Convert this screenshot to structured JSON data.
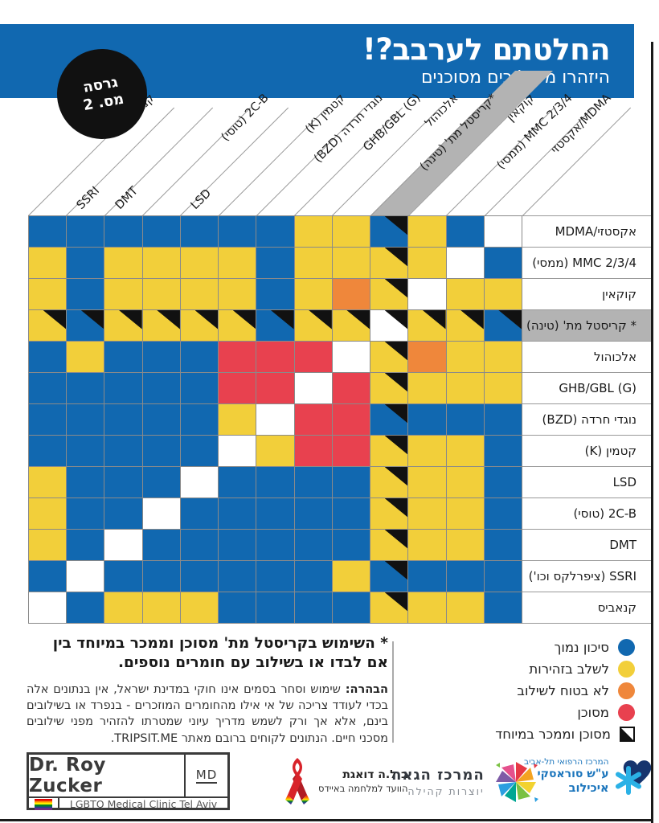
{
  "header": {
    "title": "החלטתם לערבב?!",
    "subtitle": "היזהרו משילובים מסוכנים",
    "badge_line1": "גרסה",
    "badge_line2": "מס. 2",
    "band_color": "#1168B0"
  },
  "chart_data": {
    "type": "heatmap",
    "title": "החלטתם לערבב?! היזהרו משילובים מסוכנים",
    "columns": [
      {
        "text": "קנאביס",
        "dir": "rtl"
      },
      {
        "text": "SSRI",
        "dir": "ltr"
      },
      {
        "text": "DMT",
        "dir": "ltr"
      },
      {
        "text": "2C-B (טוסי)",
        "dir": "rtl"
      },
      {
        "text": "LSD",
        "dir": "ltr"
      },
      {
        "text": "קטמין (K)",
        "dir": "rtl"
      },
      {
        "text": "נוגדי חרדה (BZD)",
        "dir": "rtl"
      },
      {
        "text": "GHB/GBL (G)",
        "dir": "rtl"
      },
      {
        "text": "אלכוהול",
        "dir": "rtl"
      },
      {
        "text": "*קריסטל מת' (טינה)",
        "dir": "rtl",
        "highlight": true
      },
      {
        "text": "קוקאין",
        "dir": "rtl"
      },
      {
        "text": "MMC 2/3/4 (ממסי)",
        "dir": "rtl"
      },
      {
        "text": "MDMA/אקסטזי",
        "dir": "rtl"
      }
    ],
    "rows": [
      {
        "text": "MDMA/אקסטזי",
        "dir": "ltr"
      },
      {
        "text": "MMC 2/3/4 (ממסי)",
        "dir": "rtl"
      },
      {
        "text": "קוקאין",
        "dir": "rtl"
      },
      {
        "text": "* קריסטל מת' (טינה)",
        "dir": "rtl",
        "highlight": true
      },
      {
        "text": "אלכוהול",
        "dir": "rtl"
      },
      {
        "text": "GHB/GBL (G)",
        "dir": "rtl"
      },
      {
        "text": "נוגדי חרדה (BZD)",
        "dir": "rtl"
      },
      {
        "text": "קטמין (K)",
        "dir": "rtl"
      },
      {
        "text": "LSD",
        "dir": "ltr"
      },
      {
        "text": "2C-B (טוסי)",
        "dir": "rtl"
      },
      {
        "text": "DMT",
        "dir": "ltr"
      },
      {
        "text": "SSRI (ציפרלקס וכו')",
        "dir": "rtl"
      },
      {
        "text": "קנאביס",
        "dir": "rtl"
      }
    ],
    "values": [
      [
        "B",
        "B",
        "B",
        "B",
        "B",
        "B",
        "B",
        "Y",
        "Y",
        "BT",
        "Y",
        "B",
        "W"
      ],
      [
        "Y",
        "B",
        "Y",
        "Y",
        "Y",
        "Y",
        "B",
        "Y",
        "Y",
        "YT",
        "Y",
        "W",
        "B"
      ],
      [
        "Y",
        "B",
        "Y",
        "Y",
        "Y",
        "Y",
        "B",
        "Y",
        "O",
        "YT",
        "W",
        "Y",
        "Y"
      ],
      [
        "YT",
        "BT",
        "YT",
        "YT",
        "YT",
        "YT",
        "BT",
        "YT",
        "YT",
        "WT",
        "YT",
        "YT",
        "BT"
      ],
      [
        "B",
        "Y",
        "B",
        "B",
        "B",
        "R",
        "R",
        "R",
        "W",
        "YT",
        "O",
        "Y",
        "Y"
      ],
      [
        "B",
        "B",
        "B",
        "B",
        "B",
        "R",
        "R",
        "W",
        "R",
        "YT",
        "Y",
        "Y",
        "Y"
      ],
      [
        "B",
        "B",
        "B",
        "B",
        "B",
        "Y",
        "W",
        "R",
        "R",
        "BT",
        "B",
        "B",
        "B"
      ],
      [
        "B",
        "B",
        "B",
        "B",
        "B",
        "W",
        "Y",
        "R",
        "R",
        "YT",
        "Y",
        "Y",
        "B"
      ],
      [
        "Y",
        "B",
        "B",
        "B",
        "W",
        "B",
        "B",
        "B",
        "B",
        "YT",
        "Y",
        "Y",
        "B"
      ],
      [
        "Y",
        "B",
        "B",
        "W",
        "B",
        "B",
        "B",
        "B",
        "B",
        "YT",
        "Y",
        "Y",
        "B"
      ],
      [
        "Y",
        "B",
        "W",
        "B",
        "B",
        "B",
        "B",
        "B",
        "B",
        "YT",
        "Y",
        "Y",
        "B"
      ],
      [
        "B",
        "W",
        "B",
        "B",
        "B",
        "B",
        "B",
        "B",
        "Y",
        "BT",
        "B",
        "B",
        "B"
      ],
      [
        "W",
        "B",
        "Y",
        "Y",
        "Y",
        "B",
        "B",
        "B",
        "B",
        "YT",
        "Y",
        "Y",
        "B"
      ]
    ],
    "code_meanings": {
      "B": "סיכון נמוך",
      "Y": "לשלב בזהירות",
      "O": "לא בטוח לשילוב",
      "R": "מסוכן",
      "T": "מסוכן וממכר במיוחד",
      "W": "אותו חומר"
    },
    "colors": {
      "B": "#1168B0",
      "Y": "#F2CF3A",
      "O": "#EF873B",
      "R": "#E8414F",
      "W": "#FFFFFF"
    },
    "triangle_color": "#111111",
    "grid_line_color": "#8A8A8A",
    "highlight_color": "#B3B3B3",
    "highlighted_column_index": 9,
    "highlighted_row_index": 3,
    "legend_position": "bottom-right",
    "grid": true
  },
  "legend": {
    "items": [
      {
        "swatch": "circle",
        "color": "#1168B0",
        "label": "סיכון נמוך"
      },
      {
        "swatch": "circle",
        "color": "#F2CF3A",
        "label": "לשלב בזהירות"
      },
      {
        "swatch": "circle",
        "color": "#EF873B",
        "label": "לא בטוח לשילוב"
      },
      {
        "swatch": "circle",
        "color": "#E8414F",
        "label": "מסוכן"
      },
      {
        "swatch": "triangle-square",
        "color": "#111111",
        "label": "מסוכן וממכר במיוחד"
      }
    ]
  },
  "notes": {
    "asterisk_note": "* השימוש בקריסטל מת' מסוכן וממכר במיוחד בין אם לבדו או בשילוב עם חומרים נוספים.",
    "disclaimer_label": "הבהרה:",
    "disclaimer_text": " שימוש וסחר בסמים אינו חוקי במדינת ישראל, אין בנתונים אלה בכדי לעודד צריכה של אי אילו מהחומרים המוזכרים - בנפרד או בשילובים בינם, אלא אך ורק לשמש מדריך עיוני שמטרתו להזהיר מפני שילובים מסכני חיים. הנתונים לקוחים ברובם מאתר TRIPSIT.ME."
  },
  "footer": {
    "zucker": {
      "name": "Dr. Roy Zucker",
      "md": "MD",
      "clinic": "LGBTQ Medical Clinic Tel Aviv"
    },
    "aids": {
      "line1": "ב.ל.ה דואגת",
      "line2": "הוועד למלחמה באיידס"
    },
    "pride": {
      "line1": "המרכז הגאה",
      "line2": "יוצרות קהילה"
    },
    "ichilov": {
      "line1": "המרכז הרפואי תל-אביב",
      "line2": "ע\"ש סוראסקי",
      "line3": "איכילוב"
    }
  }
}
